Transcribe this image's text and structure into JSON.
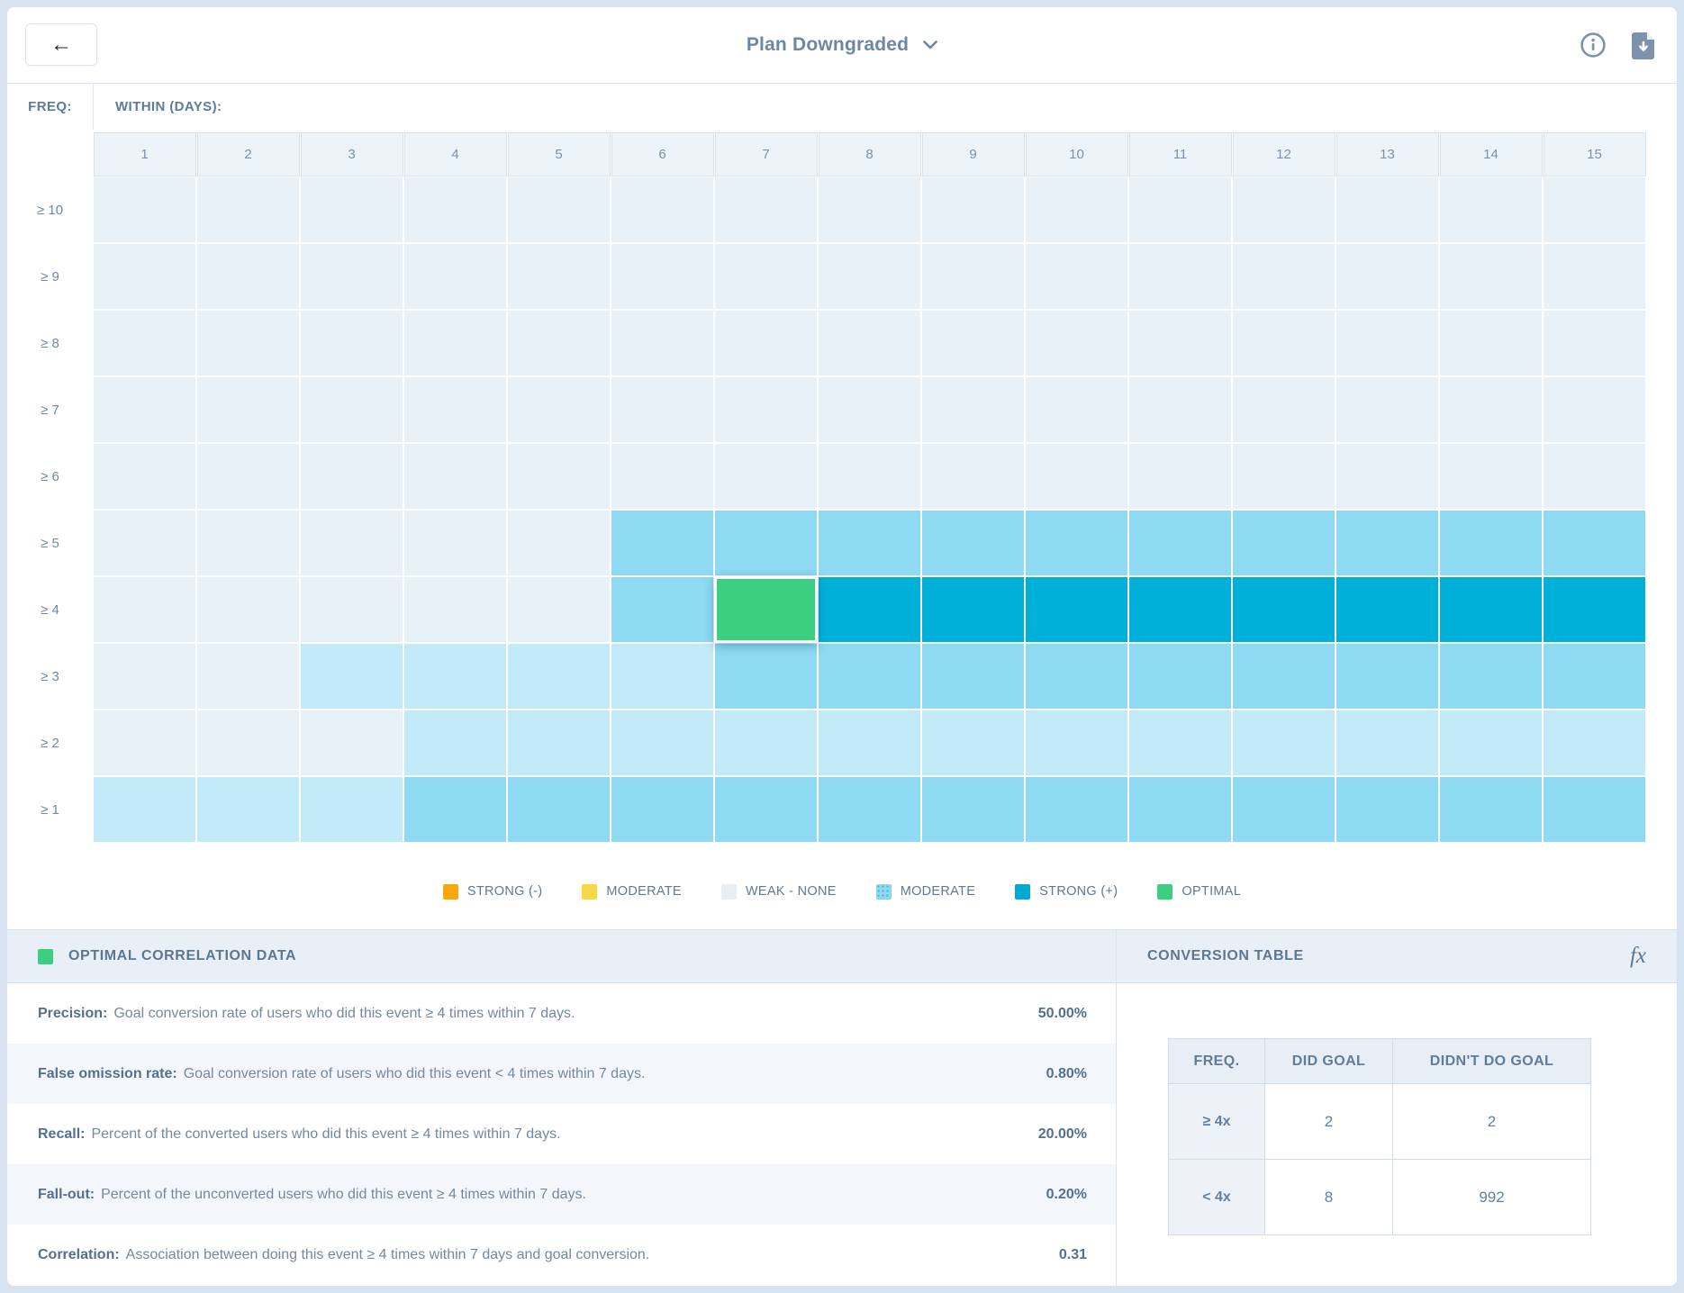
{
  "header": {
    "back_label": "←",
    "title": "Plan Downgraded"
  },
  "heatmap": {
    "freq_label": "FREQ:",
    "within_label": "WITHIN (DAYS):",
    "columns": [
      "1",
      "2",
      "3",
      "4",
      "5",
      "6",
      "7",
      "8",
      "9",
      "10",
      "11",
      "12",
      "13",
      "14",
      "15"
    ],
    "rows": [
      {
        "label": "≥ 10",
        "cells": [
          "weak",
          "weak",
          "weak",
          "weak",
          "weak",
          "weak",
          "weak",
          "weak",
          "weak",
          "weak",
          "weak",
          "weak",
          "weak",
          "weak",
          "weak"
        ]
      },
      {
        "label": "≥ 9",
        "cells": [
          "weak",
          "weak",
          "weak",
          "weak",
          "weak",
          "weak",
          "weak",
          "weak",
          "weak",
          "weak",
          "weak",
          "weak",
          "weak",
          "weak",
          "weak"
        ]
      },
      {
        "label": "≥ 8",
        "cells": [
          "weak",
          "weak",
          "weak",
          "weak",
          "weak",
          "weak",
          "weak",
          "weak",
          "weak",
          "weak",
          "weak",
          "weak",
          "weak",
          "weak",
          "weak"
        ]
      },
      {
        "label": "≥ 7",
        "cells": [
          "weak",
          "weak",
          "weak",
          "weak",
          "weak",
          "weak",
          "weak",
          "weak",
          "weak",
          "weak",
          "weak",
          "weak",
          "weak",
          "weak",
          "weak"
        ]
      },
      {
        "label": "≥ 6",
        "cells": [
          "weak",
          "weak",
          "weak",
          "weak",
          "weak",
          "weak",
          "weak",
          "weak",
          "weak",
          "weak",
          "weak",
          "weak",
          "weak",
          "weak",
          "weak"
        ]
      },
      {
        "label": "≥ 5",
        "cells": [
          "weak",
          "weak",
          "weak",
          "weak",
          "weak",
          "moderate",
          "moderate",
          "moderate",
          "moderate",
          "moderate",
          "moderate",
          "moderate",
          "moderate",
          "moderate",
          "moderate"
        ]
      },
      {
        "label": "≥ 4",
        "cells": [
          "weak",
          "weak",
          "weak",
          "weak",
          "weak",
          "moderate",
          "optimal",
          "strong",
          "strong",
          "strong",
          "strong",
          "strong",
          "strong",
          "strong",
          "strong"
        ]
      },
      {
        "label": "≥ 3",
        "cells": [
          "weak",
          "weak",
          "light",
          "light",
          "light",
          "light",
          "moderate",
          "moderate",
          "moderate",
          "moderate",
          "moderate",
          "moderate",
          "moderate",
          "moderate",
          "moderate"
        ]
      },
      {
        "label": "≥ 2",
        "cells": [
          "weak",
          "weak",
          "weak",
          "light",
          "light",
          "light",
          "light",
          "light",
          "light",
          "light",
          "light",
          "light",
          "light",
          "light",
          "light"
        ]
      },
      {
        "label": "≥ 1",
        "cells": [
          "light",
          "light",
          "light",
          "moderate",
          "moderate",
          "moderate",
          "moderate",
          "moderate",
          "moderate",
          "moderate",
          "moderate",
          "moderate",
          "moderate",
          "moderate",
          "moderate"
        ]
      }
    ],
    "cell_colors": {
      "weak": "#e9f1f8",
      "light": "#c3eaf8",
      "moderate": "#8edaf2",
      "strong": "#00b0d8",
      "optimal": "#3ccf81"
    }
  },
  "legend": [
    {
      "key": "strong-neg",
      "label": "STRONG (-)",
      "color": "#f6a90a",
      "pattern": false
    },
    {
      "key": "moderate-neg",
      "label": "MODERATE",
      "color": "#f8d943",
      "pattern": false
    },
    {
      "key": "weak-none",
      "label": "WEAK - NONE",
      "color": "#e7eef6",
      "pattern": false
    },
    {
      "key": "moderate-pos",
      "label": "MODERATE",
      "color": "#8edaf2",
      "pattern": true
    },
    {
      "key": "strong-pos",
      "label": "STRONG (+)",
      "color": "#00a9d4",
      "pattern": false
    },
    {
      "key": "optimal",
      "label": "OPTIMAL",
      "color": "#3ccf81",
      "pattern": false
    }
  ],
  "optimal_panel": {
    "title": "OPTIMAL CORRELATION DATA",
    "metrics": [
      {
        "name": "Precision:",
        "description": "Goal conversion rate of users who did this event ≥ 4 times within 7 days.",
        "value": "50.00%"
      },
      {
        "name": "False omission rate:",
        "description": "Goal conversion rate of users who did this event < 4 times within 7 days.",
        "value": "0.80%"
      },
      {
        "name": "Recall:",
        "description": "Percent of the converted users who did this event ≥ 4 times within 7 days.",
        "value": "20.00%"
      },
      {
        "name": "Fall-out:",
        "description": "Percent of the unconverted users who did this event ≥ 4 times within 7 days.",
        "value": "0.20%"
      },
      {
        "name": "Correlation:",
        "description": "Association between doing this event ≥ 4 times within 7 days and goal conversion.",
        "value": "0.31"
      }
    ]
  },
  "conversion_panel": {
    "title": "CONVERSION TABLE",
    "fx_label": "fx",
    "table": {
      "headers": [
        "FREQ.",
        "DID GOAL",
        "DIDN'T DO GOAL"
      ],
      "rows": [
        {
          "freq": "≥ 4x",
          "did": "2",
          "didnt": "2"
        },
        {
          "freq": "< 4x",
          "did": "8",
          "didnt": "992"
        }
      ]
    }
  }
}
